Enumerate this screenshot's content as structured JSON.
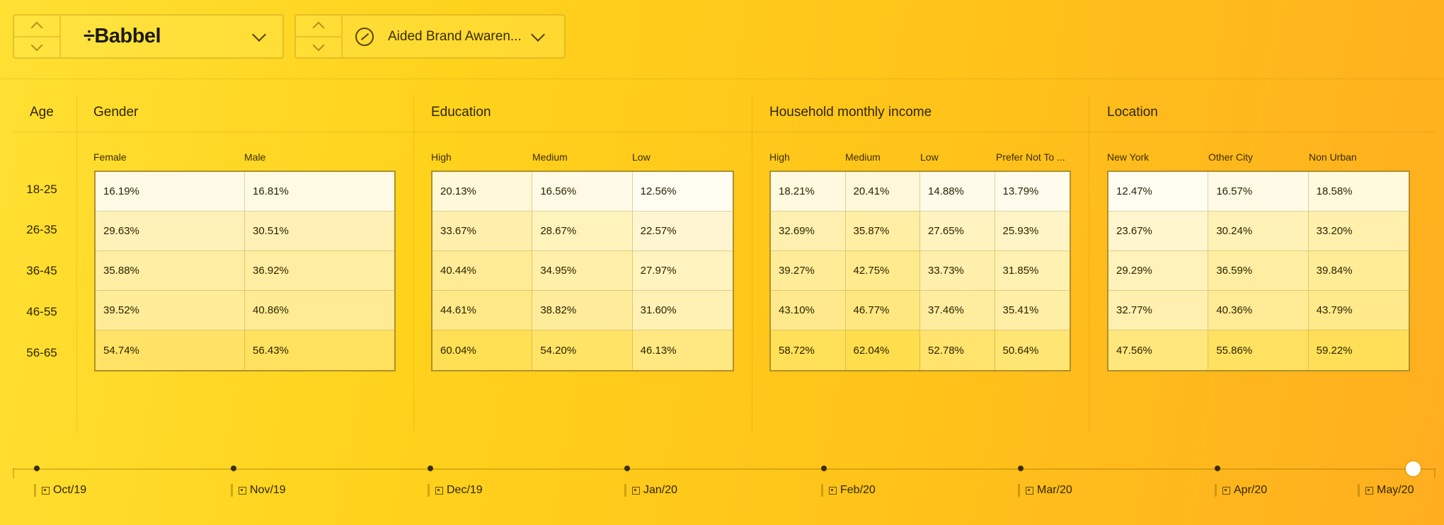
{
  "brand_selector": {
    "brand": "÷Babbel"
  },
  "metric_selector": {
    "label": "Aided Brand Awaren..."
  },
  "age": {
    "title": "Age",
    "rows": [
      "18-25",
      "26-35",
      "36-45",
      "46-55",
      "56-65"
    ]
  },
  "sections": [
    {
      "title": "Gender",
      "columns": [
        "Female",
        "Male"
      ],
      "values": [
        [
          "16.19%",
          "16.81%"
        ],
        [
          "29.63%",
          "30.51%"
        ],
        [
          "35.88%",
          "36.92%"
        ],
        [
          "39.52%",
          "40.86%"
        ],
        [
          "54.74%",
          "56.43%"
        ]
      ]
    },
    {
      "title": "Education",
      "columns": [
        "High",
        "Medium",
        "Low"
      ],
      "values": [
        [
          "20.13%",
          "16.56%",
          "12.56%"
        ],
        [
          "33.67%",
          "28.67%",
          "22.57%"
        ],
        [
          "40.44%",
          "34.95%",
          "27.97%"
        ],
        [
          "44.61%",
          "38.82%",
          "31.60%"
        ],
        [
          "60.04%",
          "54.20%",
          "46.13%"
        ]
      ]
    },
    {
      "title": "Household monthly income",
      "columns": [
        "High",
        "Medium",
        "Low",
        "Prefer Not To ..."
      ],
      "values": [
        [
          "18.21%",
          "20.41%",
          "14.88%",
          "13.79%"
        ],
        [
          "32.69%",
          "35.87%",
          "27.65%",
          "25.93%"
        ],
        [
          "39.27%",
          "42.75%",
          "33.73%",
          "31.85%"
        ],
        [
          "43.10%",
          "46.77%",
          "37.46%",
          "35.41%"
        ],
        [
          "58.72%",
          "62.04%",
          "52.78%",
          "50.64%"
        ]
      ]
    },
    {
      "title": "Location",
      "columns": [
        "New York",
        "Other City",
        "Non Urban"
      ],
      "values": [
        [
          "12.47%",
          "16.57%",
          "18.58%"
        ],
        [
          "23.67%",
          "30.24%",
          "33.20%"
        ],
        [
          "29.29%",
          "36.59%",
          "39.84%"
        ],
        [
          "32.77%",
          "40.36%",
          "43.79%"
        ],
        [
          "47.56%",
          "55.86%",
          "59.22%"
        ]
      ]
    }
  ],
  "timeline": {
    "labels": [
      "Oct/19",
      "Nov/19",
      "Dec/19",
      "Jan/20",
      "Feb/20",
      "Mar/20",
      "Apr/20",
      "May/20"
    ],
    "selected": "May/20"
  },
  "colors": {
    "cell_light": "#fffdf4",
    "cell_dark": "#ffdd4a",
    "background_start": "#ffe033",
    "background_end": "#ffae1f"
  }
}
